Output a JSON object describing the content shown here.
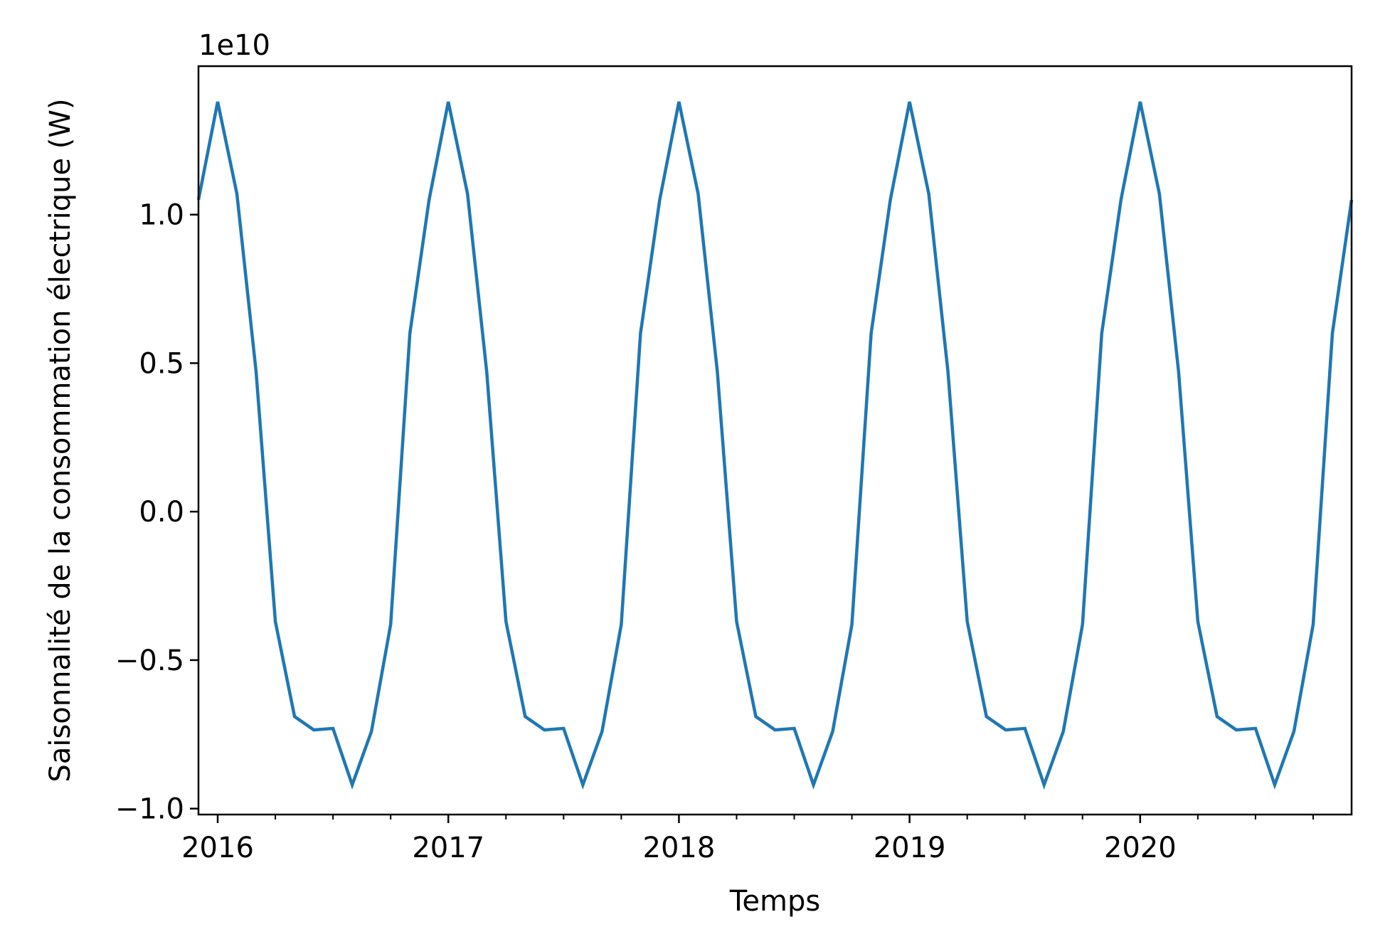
{
  "chart_data": {
    "type": "line",
    "title": "",
    "xlabel": "Temps",
    "ylabel": "Saisonnalité de la consommation électrique (W)",
    "y_offset_label": "1e10",
    "y_scale": 10000000000,
    "ylim": [
      -1.02,
      1.5
    ],
    "y_ticks": [
      -1.0,
      -0.5,
      0.0,
      0.5,
      1.0
    ],
    "y_tick_labels": [
      "−1.0",
      "−0.5",
      "0.0",
      "0.5",
      "1.0"
    ],
    "x_ticks": [
      "2016-01",
      "2017-01",
      "2018-01",
      "2019-01",
      "2020-01"
    ],
    "x_tick_labels": [
      "2016",
      "2017",
      "2018",
      "2019",
      "2020"
    ],
    "xlim": [
      "2015-12",
      "2020-12"
    ],
    "grid": false,
    "legend": null,
    "line_color": "#1f77b4",
    "series": [
      {
        "x": [
          "2015-12",
          "2016-01",
          "2016-02",
          "2016-03",
          "2016-04",
          "2016-05",
          "2016-06",
          "2016-07",
          "2016-08",
          "2016-09",
          "2016-10",
          "2016-11",
          "2016-12",
          "2017-01",
          "2017-02",
          "2017-03",
          "2017-04",
          "2017-05",
          "2017-06",
          "2017-07",
          "2017-08",
          "2017-09",
          "2017-10",
          "2017-11",
          "2017-12",
          "2018-01",
          "2018-02",
          "2018-03",
          "2018-04",
          "2018-05",
          "2018-06",
          "2018-07",
          "2018-08",
          "2018-09",
          "2018-10",
          "2018-11",
          "2018-12",
          "2019-01",
          "2019-02",
          "2019-03",
          "2019-04",
          "2019-05",
          "2019-06",
          "2019-07",
          "2019-08",
          "2019-09",
          "2019-10",
          "2019-11",
          "2019-12",
          "2020-01",
          "2020-02",
          "2020-03",
          "2020-04",
          "2020-05",
          "2020-06",
          "2020-07",
          "2020-08",
          "2020-09",
          "2020-10",
          "2020-11",
          "2020-12"
        ],
        "y": [
          1.05,
          1.38,
          1.07,
          0.47,
          -0.37,
          -0.69,
          -0.735,
          -0.73,
          -0.92,
          -0.74,
          -0.38,
          0.6,
          1.05,
          1.38,
          1.07,
          0.47,
          -0.37,
          -0.69,
          -0.735,
          -0.73,
          -0.92,
          -0.74,
          -0.38,
          0.6,
          1.05,
          1.38,
          1.07,
          0.47,
          -0.37,
          -0.69,
          -0.735,
          -0.73,
          -0.92,
          -0.74,
          -0.38,
          0.6,
          1.05,
          1.38,
          1.07,
          0.47,
          -0.37,
          -0.69,
          -0.735,
          -0.73,
          -0.92,
          -0.74,
          -0.38,
          0.6,
          1.05,
          1.38,
          1.07,
          0.47,
          -0.37,
          -0.69,
          -0.735,
          -0.73,
          -0.92,
          -0.74,
          -0.38,
          0.6,
          1.05
        ]
      }
    ]
  }
}
